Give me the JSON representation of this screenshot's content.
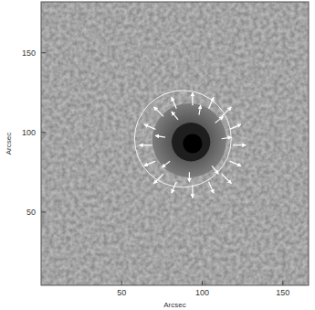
{
  "chart_data": {
    "type": "vector_field",
    "x_label": "Arcsec",
    "y_label": "Arcsec",
    "xlim": [
      0,
      166
    ],
    "ylim": [
      4,
      182
    ],
    "xticks": [
      50,
      100,
      150
    ],
    "yticks": [
      50,
      100,
      150
    ],
    "umbra_core": {
      "x": 94,
      "y": 93,
      "r": 6
    },
    "umbra": {
      "x": 93,
      "y": 94,
      "r": 12
    },
    "penumbra": {
      "x": 92,
      "y": 95,
      "r": 23
    },
    "contour": {
      "x": 88,
      "y": 96,
      "r": 30
    },
    "vectors": [
      {
        "x": 119,
        "y": 92,
        "u": 8,
        "v": 0
      },
      {
        "x": 117,
        "y": 102,
        "u": 7,
        "v": 3
      },
      {
        "x": 112,
        "y": 110,
        "u": 6,
        "v": 6
      },
      {
        "x": 104,
        "y": 115,
        "u": 3,
        "v": 7
      },
      {
        "x": 94,
        "y": 117,
        "u": 0,
        "v": 8
      },
      {
        "x": 84,
        "y": 115,
        "u": -3,
        "v": 7
      },
      {
        "x": 76,
        "y": 110,
        "u": -6,
        "v": 6
      },
      {
        "x": 71,
        "y": 102,
        "u": -7,
        "v": 3
      },
      {
        "x": 69,
        "y": 92,
        "u": -8,
        "v": 0
      },
      {
        "x": 71,
        "y": 82,
        "u": -7,
        "v": -3
      },
      {
        "x": 76,
        "y": 74,
        "u": -6,
        "v": -6
      },
      {
        "x": 84,
        "y": 69,
        "u": -3,
        "v": -7
      },
      {
        "x": 94,
        "y": 67,
        "u": 0,
        "v": -8
      },
      {
        "x": 104,
        "y": 69,
        "u": 3,
        "v": -7
      },
      {
        "x": 112,
        "y": 74,
        "u": 6,
        "v": -6
      },
      {
        "x": 117,
        "y": 82,
        "u": 7,
        "v": -3
      },
      {
        "x": 112,
        "y": 96,
        "u": 6,
        "v": 1
      },
      {
        "x": 108,
        "y": 106,
        "u": 5,
        "v": 4
      },
      {
        "x": 98,
        "y": 111,
        "u": 1,
        "v": 6
      },
      {
        "x": 85,
        "y": 108,
        "u": -4,
        "v": 5
      },
      {
        "x": 77,
        "y": 97,
        "u": -6,
        "v": 1
      },
      {
        "x": 80,
        "y": 82,
        "u": -5,
        "v": -4
      },
      {
        "x": 92,
        "y": 75,
        "u": 0,
        "v": -6
      },
      {
        "x": 106,
        "y": 79,
        "u": 4,
        "v": -5
      }
    ]
  }
}
